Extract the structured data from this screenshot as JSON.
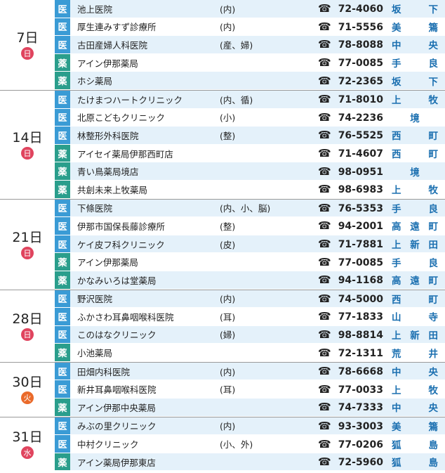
{
  "groups": [
    {
      "date": "7日",
      "day": "日",
      "color": "#e0445e",
      "rows": [
        {
          "type": "医",
          "name": "池上医院",
          "dept": "(内)",
          "tel": "72-4060",
          "area": "坂下"
        },
        {
          "type": "医",
          "name": "厚生連みすず診療所",
          "dept": "(内)",
          "tel": "71-5556",
          "area": "美篶"
        },
        {
          "type": "医",
          "name": "古田産婦人科医院",
          "dept": "(産、婦)",
          "tel": "78-8088",
          "area": "中央"
        },
        {
          "type": "薬",
          "name": "アイン伊那薬局",
          "tel": "77-0085",
          "area": "手良"
        },
        {
          "type": "薬",
          "name": "ホシ薬局",
          "tel": "72-2365",
          "area": "坂下"
        }
      ]
    },
    {
      "date": "14日",
      "day": "日",
      "color": "#e0445e",
      "rows": [
        {
          "type": "医",
          "name": "たけまつハートクリニック",
          "dept": "(内、循)",
          "tel": "71-8010",
          "area": "上牧"
        },
        {
          "type": "医",
          "name": "北原こどもクリニック",
          "dept": "(小)",
          "tel": "74-2236",
          "area": "境"
        },
        {
          "type": "医",
          "name": "林整形外科医院",
          "dept": "(整)",
          "tel": "76-5525",
          "area": "西町"
        },
        {
          "type": "薬",
          "name": "アイセイ薬局伊那西町店",
          "tel": "71-4607",
          "area": "西町"
        },
        {
          "type": "薬",
          "name": "青い鳥薬局境店",
          "tel": "98-0951",
          "area": "境"
        },
        {
          "type": "薬",
          "name": "共創未来上牧薬局",
          "tel": "98-6983",
          "area": "上牧"
        }
      ]
    },
    {
      "date": "21日",
      "day": "日",
      "color": "#e0445e",
      "rows": [
        {
          "type": "医",
          "name": "下條医院",
          "dept": "(内、小、脳)",
          "tel": "76-5353",
          "area": "手良"
        },
        {
          "type": "医",
          "name": "伊那市国保長藤診療所",
          "dept": "(整)",
          "tel": "94-2001",
          "area": "高遠町"
        },
        {
          "type": "医",
          "name": "ケイ皮フ科クリニック",
          "dept": "(皮)",
          "tel": "71-7881",
          "area": "上新田"
        },
        {
          "type": "薬",
          "name": "アイン伊那薬局",
          "tel": "77-0085",
          "area": "手良"
        },
        {
          "type": "薬",
          "name": "かなみいろは堂薬局",
          "tel": "94-1168",
          "area": "高遠町"
        }
      ]
    },
    {
      "date": "28日",
      "day": "日",
      "color": "#e0445e",
      "rows": [
        {
          "type": "医",
          "name": "野沢医院",
          "dept": "(内)",
          "tel": "74-5000",
          "area": "西町"
        },
        {
          "type": "医",
          "name": "ふかさわ耳鼻咽喉科医院",
          "dept": "(耳)",
          "tel": "77-1833",
          "area": "山寺"
        },
        {
          "type": "医",
          "name": "このはなクリニック",
          "dept": "(婦)",
          "tel": "98-8814",
          "area": "上新田"
        },
        {
          "type": "薬",
          "name": "小池薬局",
          "tel": "72-1311",
          "area": "荒井"
        }
      ]
    },
    {
      "date": "30日",
      "day": "火",
      "color": "#ea6a2a",
      "rows": [
        {
          "type": "医",
          "name": "田畑内科医院",
          "dept": "(内)",
          "tel": "78-6668",
          "area": "中央"
        },
        {
          "type": "医",
          "name": "新井耳鼻咽喉科医院",
          "dept": "(耳)",
          "tel": "77-0033",
          "area": "上牧"
        },
        {
          "type": "薬",
          "name": "アイン伊那中央薬局",
          "tel": "74-7333",
          "area": "中央"
        }
      ]
    },
    {
      "date": "31日",
      "day": "水",
      "color": "#e0445e",
      "rows": [
        {
          "type": "医",
          "name": "みぶの里クリニック",
          "dept": "(内)",
          "tel": "93-3003",
          "area": "美篶"
        },
        {
          "type": "医",
          "name": "中村クリニック",
          "dept": "(小、外)",
          "tel": "77-0206",
          "area": "狐島"
        },
        {
          "type": "薬",
          "name": "アイン薬局伊那東店",
          "tel": "72-5960",
          "area": "狐島"
        }
      ]
    }
  ]
}
